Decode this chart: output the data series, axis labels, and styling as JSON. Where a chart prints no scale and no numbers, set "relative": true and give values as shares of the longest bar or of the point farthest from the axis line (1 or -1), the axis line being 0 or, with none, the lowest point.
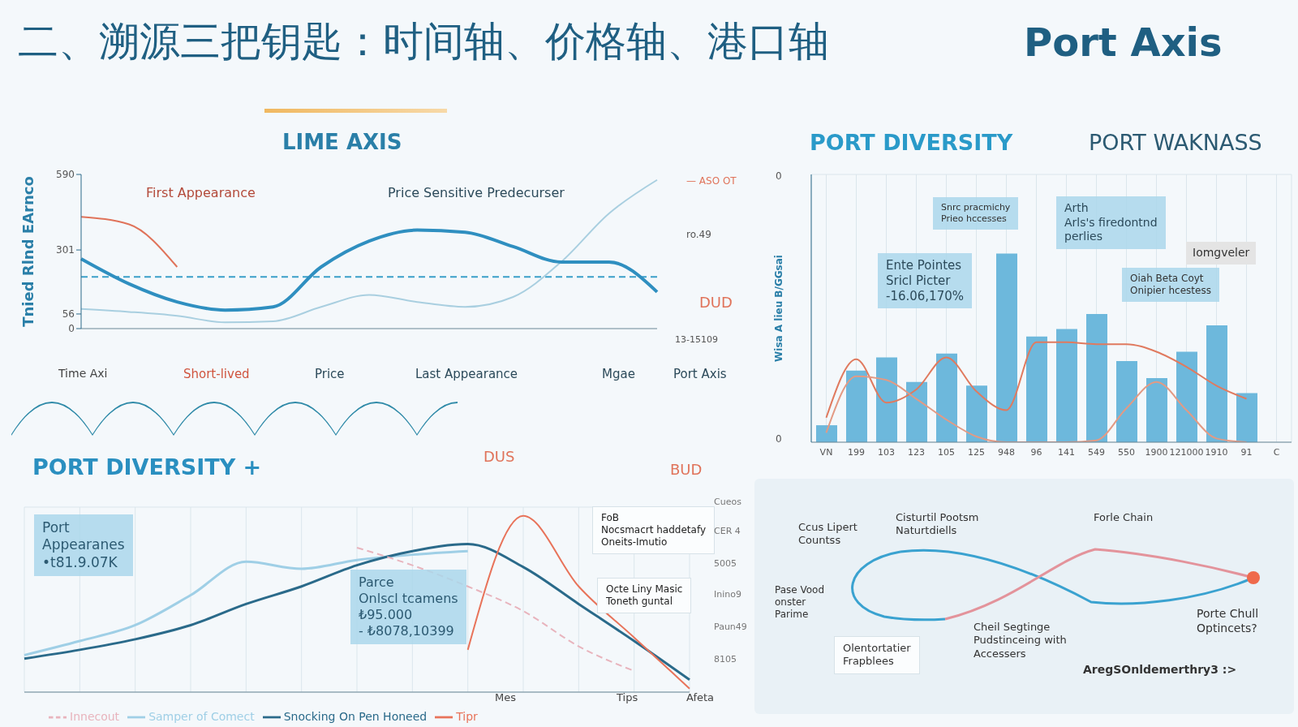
{
  "chart_data": [
    {
      "type": "line",
      "title": "二、溯源三把钥匙：时间轴、价格轴、港口轴",
      "subtitle": "LIME AXIS",
      "ylabel": "Tnied Rlnd EArnco",
      "categories": [
        null,
        null,
        null,
        null,
        null,
        null,
        null,
        null,
        null,
        null,
        null,
        null,
        null
      ],
      "series": [
        {
          "color": "#a9cfe0",
          "values": [
            75,
            64,
            49,
            24,
            28,
            83,
            129,
            102,
            83,
            121,
            255,
            441,
            569
          ]
        },
        {
          "color": "#2f8fc0",
          "values": [
            267,
            171,
            102,
            71,
            83,
            236,
            335,
            377,
            369,
            314,
            255,
            255,
            140
          ]
        },
        {
          "color": "#e0735a",
          "values": [
            428,
            399,
            236,
            null,
            null,
            null,
            null,
            null,
            null,
            null,
            null,
            null,
            null
          ]
        }
      ],
      "ylim": [
        0,
        590
      ],
      "yticks": [
        0,
        56,
        301,
        590
      ],
      "grid": false,
      "marker": "none",
      "ref_lines": [
        {
          "axis": "y",
          "value": 198,
          "color": "#3a9fc9",
          "line_style": "dashed"
        }
      ],
      "annotations": [
        "Port Axis",
        "First Appearance",
        "Price Sensitive Predecurser",
        "— ASO OT",
        "ro.49",
        "13-15109",
        "DUD",
        "Time Axi",
        "Short-lived",
        "Price",
        "Last Appearance",
        "Mgae",
        "Port Axis"
      ]
    },
    {
      "type": "bar",
      "title": "PORT DIVERSITY",
      "subtitle": "PORT WAKNASS",
      "ylabel": "Wisa A  lieu B/GGsai",
      "relative": true,
      "grid": true,
      "categories": [
        "VN",
        "199",
        "103",
        "123",
        "105",
        "125",
        "948",
        "96",
        "141",
        "549",
        "550",
        "1900",
        "121000",
        "1910",
        "91",
        "C"
      ],
      "series": [
        {
          "type": "bar",
          "color": "#6db8dc",
          "values": [
            0.09,
            0.38,
            0.45,
            0.32,
            0.47,
            0.3,
            1,
            0.56,
            0.6,
            0.68,
            0.43,
            0.34,
            0.48,
            0.62,
            0.26,
            null
          ]
        },
        {
          "type": "line",
          "color": "#e07a5f",
          "values": [
            0.13,
            0.44,
            0.21,
            0.28,
            0.45,
            0.27,
            0.17,
            0.53,
            0.53,
            0.52,
            0.52,
            0.48,
            0.4,
            0.3,
            0.23,
            null
          ]
        },
        {
          "type": "line",
          "color": "#e39a84",
          "values": [
            0.05,
            0.35,
            0.33,
            0.23,
            0.12,
            0.03,
            0,
            0,
            0,
            0.01,
            0.18,
            0.32,
            0.17,
            0.02,
            0,
            null
          ]
        }
      ],
      "annotations": [
        "Snrc pracmichy\nPrieo hccesses",
        "Arth\nArls's firedontnd\nperlies",
        "Ente Pointes\nSricl Picter\n-16.06,170%",
        "Iomgveler",
        "Oiah Beta Coyt\nOnipier hcestess",
        "0",
        "0"
      ]
    },
    {
      "type": "line",
      "title": "PORT DIVERSITY +",
      "relative": true,
      "grid": true,
      "legend": "bottom",
      "categories": [
        null,
        null,
        null,
        null,
        null,
        null,
        null,
        null,
        null,
        null,
        null,
        null,
        null
      ],
      "series": [
        {
          "name": "Samper of Comect",
          "color": "#9fcfe6",
          "values": [
            0.21,
            0.29,
            0.38,
            0.55,
            0.74,
            0.7,
            0.75,
            0.78,
            0.8,
            null,
            null,
            null,
            null
          ]
        },
        {
          "name": "Snocking On Pen Honeed",
          "color": "#2a6a8a",
          "values": [
            0.19,
            0.24,
            0.3,
            0.38,
            0.5,
            0.6,
            0.72,
            0.8,
            0.84,
            0.71,
            0.5,
            0.29,
            0.07
          ]
        },
        {
          "name": "Tipr",
          "color": "#e8735a",
          "values": [
            null,
            null,
            null,
            null,
            null,
            null,
            null,
            null,
            0.24,
            1,
            0.6,
            0.31,
            0.02
          ]
        },
        {
          "name": "Innecout",
          "color": "#e8b4bd",
          "line_style": "dashed",
          "values": [
            null,
            null,
            null,
            null,
            null,
            null,
            0.82,
            0.72,
            0.6,
            0.46,
            0.26,
            0.12,
            null
          ]
        }
      ],
      "annotations": [
        "Port\nAppearanes\n•t81.9.07K",
        "Parce\nOnlscl tcamens\n₺95.000\n- ₺8078,10399",
        "FoB\nNocsmacrt haddetafy\nOneits-Imutio",
        "Octe Liny Masic\nToneth guntal",
        "Cueos",
        "CER 4",
        "5005",
        "Inino9",
        "Paun49",
        "8105",
        "Mes",
        "Tips",
        "Afeta",
        "DUS",
        "BUD"
      ]
    },
    {
      "type": "other",
      "annotations": [
        "Ccus Lipert\nCountss",
        "Cisturtil Pootsm\nNaturtdiells",
        "Forle Chain",
        "Pase Vood\nonster\nParime",
        "Olentortatier\nFrapblees",
        "Cheil Segtinge\nPudstinceing with\nAccessers",
        "Porte Chull\nOptincets?",
        "AregSOnldemerthry3 :>"
      ]
    }
  ]
}
